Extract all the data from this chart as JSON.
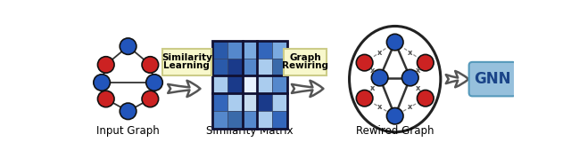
{
  "blue_color": "#2255BB",
  "red_color": "#CC2222",
  "node_edge_color": "#111111",
  "gnn_box_fc": "#96C0DC",
  "gnn_box_ec": "#5599BB",
  "gnn_text_color": "#1a4488",
  "label_box_fc": "#F8F8CC",
  "label_box_ec": "#CCCC88",
  "bg": "#ffffff",
  "edge_color": "#333333",
  "dash_color": "#888888",
  "x_color": "#555555",
  "ellipse_color": "#222222",
  "matrix_colors": [
    [
      "#2a5aaa",
      "#5588cc",
      "#7aaae0",
      "#3366bb",
      "#7aaae0"
    ],
    [
      "#2a5aaa",
      "#1a3a8a",
      "#5588cc",
      "#aaccee",
      "#3a6aaa"
    ],
    [
      "#aaccee",
      "#1a3a8a",
      "#e8f2ff",
      "#aaccee",
      "#5588cc"
    ],
    [
      "#3366bb",
      "#aaccee",
      "#c8ddf0",
      "#1a3a8a",
      "#aaccee"
    ],
    [
      "#5588cc",
      "#3a6aaa",
      "#5588cc",
      "#aaccee",
      "#3366bb"
    ]
  ],
  "mat_thick_div": [
    2,
    3
  ],
  "label_input": "Input Graph",
  "label_matrix": "Similarity Matrix",
  "label_rewired": "Rewired Graph",
  "label_gnn": "GNN",
  "box1_t1": "Similarity",
  "box1_t2": "Learning",
  "box2_t1": "Graph",
  "box2_t2": "Rewiring"
}
